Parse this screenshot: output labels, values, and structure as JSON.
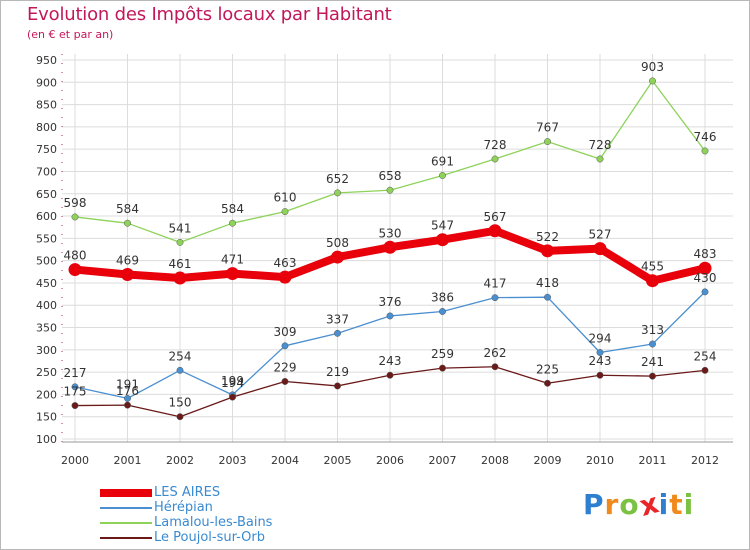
{
  "title": "Evolution des Impôts locaux par Habitant",
  "subtitle": "(en € et par an)",
  "logo": {
    "text": "Proxiti",
    "letters": [
      {
        "ch": "P",
        "color": "#2e7fd0"
      },
      {
        "ch": "r",
        "color": "#f08a1c"
      },
      {
        "ch": "o",
        "color": "#7cc242"
      },
      {
        "ch": "x",
        "color": "#e8262a"
      },
      {
        "ch": "i",
        "color": "#2e7fd0"
      },
      {
        "ch": "t",
        "color": "#f08a1c"
      },
      {
        "ch": "i",
        "color": "#7cc242"
      }
    ]
  },
  "chart_data": {
    "type": "line",
    "title": "Evolution des Impôts locaux par Habitant",
    "subtitle": "(en € et par an)",
    "x": [
      "2000",
      "2001",
      "2002",
      "2003",
      "2004",
      "2005",
      "2006",
      "2007",
      "2008",
      "2009",
      "2010",
      "2011",
      "2012"
    ],
    "ylim": [
      100,
      950
    ],
    "yticks": [
      100,
      150,
      200,
      250,
      300,
      350,
      400,
      450,
      500,
      550,
      600,
      650,
      700,
      750,
      800,
      850,
      900,
      950
    ],
    "grid": true,
    "legend_position": "bottom-left",
    "series": [
      {
        "name": "LES AIRES",
        "color": "#e8000b",
        "values": [
          480,
          469,
          461,
          471,
          463,
          508,
          530,
          547,
          567,
          522,
          527,
          455,
          483
        ]
      },
      {
        "name": "Hérépian",
        "color": "#4a8fd0",
        "values": [
          217,
          191,
          254,
          199,
          309,
          337,
          376,
          386,
          417,
          418,
          294,
          313,
          430
        ]
      },
      {
        "name": "Lamalou-les-Bains",
        "color": "#8ed25a",
        "values": [
          598,
          584,
          541,
          584,
          610,
          652,
          658,
          691,
          728,
          767,
          728,
          903,
          746
        ]
      },
      {
        "name": "Le Poujol-sur-Orb",
        "color": "#6b1a1a",
        "values": [
          175,
          176,
          150,
          194,
          229,
          219,
          243,
          259,
          262,
          225,
          243,
          241,
          254
        ]
      }
    ],
    "data_labels": [
      [
        "480",
        "469",
        "461",
        "471",
        "463",
        "508",
        "530",
        "547",
        "567",
        "522",
        "527",
        "455",
        "483"
      ],
      [
        "217",
        "191",
        "254",
        "199",
        "309",
        "337",
        "376",
        "386",
        "417",
        "418",
        "294",
        "313",
        "430"
      ],
      [
        "598",
        "584",
        "541",
        "584",
        "610",
        "652",
        "658",
        "691",
        "728",
        "767",
        "728",
        "903",
        "746"
      ],
      [
        "175",
        "176",
        "150",
        "194",
        "229",
        "219",
        "243",
        "259",
        "262",
        "225",
        "243",
        "241",
        "254"
      ]
    ]
  }
}
